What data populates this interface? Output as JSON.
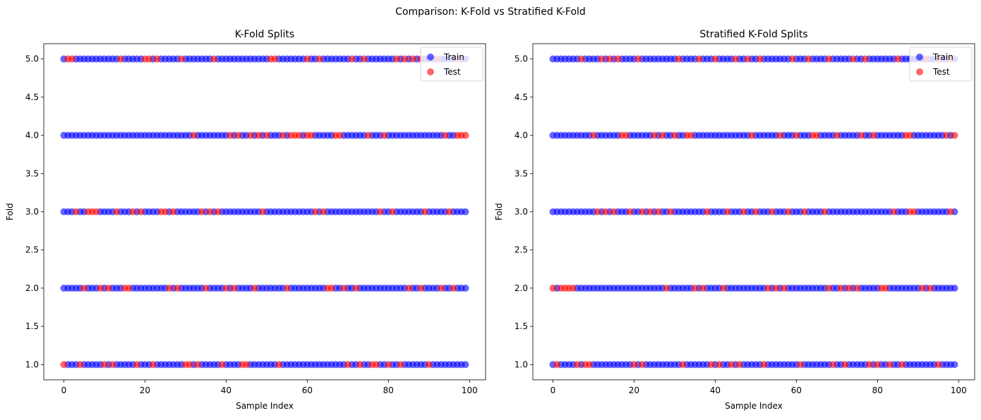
{
  "figure": {
    "suptitle": "Comparison: K-Fold vs Stratified K-Fold"
  },
  "colors": {
    "train": "#0000ff",
    "test": "#ff0000",
    "alpha": 0.6
  },
  "chart_data": [
    {
      "type": "scatter",
      "title": "K-Fold Splits",
      "xlabel": "Sample Index",
      "ylabel": "Fold",
      "xlim": [
        -4.95,
        103.95
      ],
      "ylim": [
        0.8,
        5.2
      ],
      "xticks": [
        "0",
        "20",
        "40",
        "60",
        "80",
        "100"
      ],
      "yticks": [
        "1.0",
        "1.5",
        "2.0",
        "2.5",
        "3.0",
        "3.5",
        "4.0",
        "4.5",
        "5.0"
      ],
      "grid": false,
      "legend": {
        "placement": "upper right",
        "entries": [
          "Train",
          "Test"
        ]
      },
      "sample_range": [
        0,
        99
      ],
      "folds": [
        {
          "fold": 1,
          "test_indices": [
            0,
            4,
            10,
            12,
            18,
            22,
            30,
            31,
            33,
            39,
            44,
            45,
            53,
            70,
            73,
            76,
            77,
            80,
            83,
            90
          ]
        },
        {
          "fold": 2,
          "test_indices": [
            5,
            9,
            11,
            15,
            16,
            26,
            28,
            35,
            40,
            42,
            47,
            55,
            65,
            66,
            69,
            72,
            85,
            88,
            93,
            96
          ]
        },
        {
          "fold": 3,
          "test_indices": [
            3,
            6,
            7,
            8,
            13,
            17,
            19,
            24,
            25,
            27,
            34,
            36,
            38,
            49,
            62,
            64,
            78,
            81,
            89,
            95
          ]
        },
        {
          "fold": 4,
          "test_indices": [
            32,
            41,
            43,
            46,
            48,
            50,
            54,
            56,
            57,
            58,
            60,
            61,
            67,
            68,
            75,
            79,
            94,
            97,
            98,
            99
          ]
        },
        {
          "fold": 5,
          "test_indices": [
            1,
            2,
            14,
            20,
            21,
            23,
            29,
            37,
            51,
            52,
            60,
            63,
            71,
            74,
            82,
            84,
            86,
            88,
            92,
            97
          ]
        }
      ]
    },
    {
      "type": "scatter",
      "title": "Stratified K-Fold Splits",
      "xlabel": "Sample Index",
      "ylabel": "Fold",
      "xlim": [
        -4.95,
        103.95
      ],
      "ylim": [
        0.8,
        5.2
      ],
      "xticks": [
        "0",
        "20",
        "40",
        "60",
        "80",
        "100"
      ],
      "yticks": [
        "1.0",
        "1.5",
        "2.0",
        "2.5",
        "3.0",
        "3.5",
        "4.0",
        "4.5",
        "5.0"
      ],
      "grid": false,
      "legend": {
        "placement": "upper right",
        "entries": [
          "Train",
          "Test"
        ]
      },
      "sample_range": [
        0,
        99
      ],
      "folds": [
        {
          "fold": 1,
          "test_indices": [
            1,
            6,
            8,
            9,
            20,
            22,
            32,
            39,
            41,
            44,
            46,
            52,
            61,
            69,
            72,
            78,
            80,
            83,
            86,
            95
          ]
        },
        {
          "fold": 2,
          "test_indices": [
            0,
            2,
            3,
            4,
            5,
            28,
            35,
            37,
            42,
            53,
            55,
            57,
            68,
            71,
            73,
            75,
            81,
            82,
            91,
            93
          ]
        },
        {
          "fold": 3,
          "test_indices": [
            11,
            13,
            15,
            19,
            22,
            24,
            26,
            29,
            38,
            43,
            47,
            50,
            54,
            58,
            62,
            67,
            84,
            88,
            89,
            98
          ]
        },
        {
          "fold": 4,
          "test_indices": [
            10,
            17,
            18,
            25,
            27,
            30,
            33,
            34,
            49,
            56,
            60,
            64,
            65,
            70,
            76,
            79,
            87,
            88,
            97,
            99
          ]
        },
        {
          "fold": 5,
          "test_indices": [
            7,
            12,
            14,
            16,
            21,
            31,
            36,
            40,
            45,
            48,
            51,
            59,
            63,
            68,
            74,
            77,
            85,
            92,
            95,
            98
          ]
        }
      ]
    }
  ]
}
